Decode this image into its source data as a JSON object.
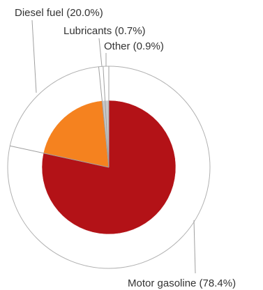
{
  "chart_data": {
    "type": "pie",
    "title": "",
    "slices": [
      {
        "name": "Motor gasoline",
        "value": 78.4,
        "label": "Motor gasoline (78.4%)",
        "color": "#b31217"
      },
      {
        "name": "Diesel fuel",
        "value": 20.0,
        "label": "Diesel fuel (20.0%)",
        "color": "#f5821f"
      },
      {
        "name": "Lubricants",
        "value": 0.7,
        "label": "Lubricants (0.7%)",
        "color": "#c8c8c8"
      },
      {
        "name": "Other",
        "value": 0.9,
        "label": "Other (0.9%)",
        "color": "#c8c8c8"
      }
    ],
    "outer_ring_color": "#b0b0b0",
    "leader_line_color": "#a0a0a0"
  }
}
